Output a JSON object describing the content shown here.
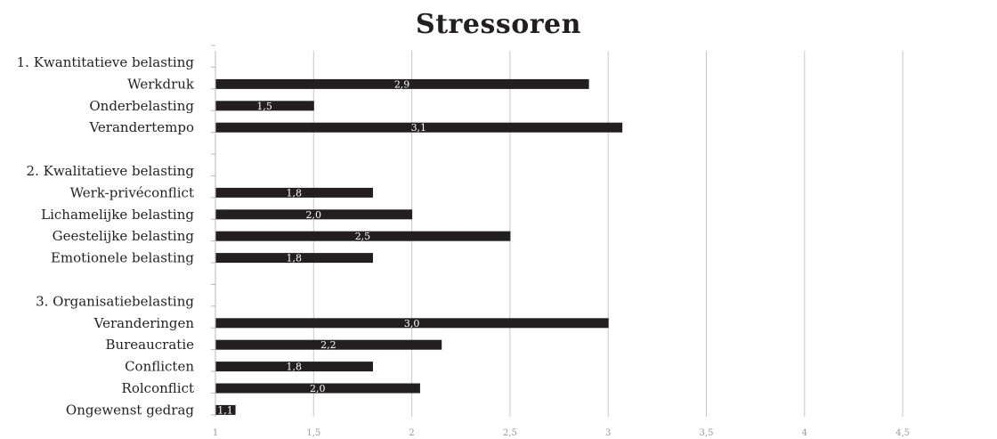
{
  "chart_data": {
    "type": "bar",
    "orientation": "horizontal",
    "title": "Stressoren",
    "xlabel": "",
    "ylabel": "",
    "xlim": [
      1,
      5
    ],
    "x_ticks": [
      "1",
      "1,5",
      "2",
      "2,5",
      "3",
      "3,5",
      "4",
      "4,5"
    ],
    "x_tick_values": [
      1,
      1.5,
      2,
      2.5,
      3,
      3.5,
      4,
      4.5
    ],
    "grid": true,
    "legend": "none",
    "bar_color": "#231f20",
    "categories": [
      "1. Kwantitatieve belasting",
      "Werkdruk",
      "Onderbelasting",
      "Verandertempo",
      "",
      "2. Kwalitatieve belasting",
      "Werk-privéconflict",
      "Lichamelijke belasting",
      "Geestelijke belasting",
      "Emotionele belasting",
      "",
      "3. Organisatiebelasting",
      "Veranderingen",
      "Bureaucratie",
      "Conflicten",
      "Rolconflict",
      "Ongewenst gedrag"
    ],
    "values": [
      null,
      2.9,
      1.5,
      3.07,
      null,
      null,
      1.8,
      2.0,
      2.5,
      1.8,
      null,
      null,
      3.0,
      2.15,
      1.8,
      2.04,
      1.1
    ],
    "data_labels": [
      "",
      "2,9",
      "1,5",
      "3,1",
      "",
      "",
      "1,8",
      "2,0",
      "2,5",
      "1,8",
      "",
      "",
      "3,0",
      "2,2",
      "1,8",
      "2,0",
      "1,1"
    ]
  }
}
